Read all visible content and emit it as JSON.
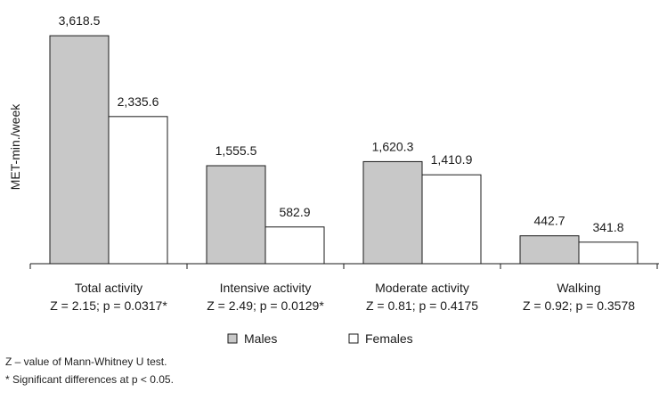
{
  "chart_data": {
    "type": "bar",
    "ylabel": "MET-min./week",
    "categories": [
      "Total activity",
      "Intensive activity",
      "Moderate activity",
      "Walking"
    ],
    "category_stats": [
      "Z = 2.15; p = 0.0317*",
      "Z = 2.49; p = 0.0129*",
      "Z = 0.81; p = 0.4175",
      "Z = 0.92; p = 0.3578"
    ],
    "series": [
      {
        "name": "Males",
        "values": [
          3618.5,
          1555.5,
          1620.3,
          442.7
        ],
        "labels": [
          "3,618.5",
          "1,555.5",
          "1,620.3",
          "442.7"
        ],
        "color": "#c8c8c8"
      },
      {
        "name": "Females",
        "values": [
          2335.6,
          582.9,
          1410.9,
          341.8
        ],
        "labels": [
          "2,335.6",
          "582.9",
          "1,410.9",
          "341.8"
        ],
        "color": "#ffffff"
      }
    ],
    "ylim": [
      0,
      3620
    ],
    "grid": false,
    "legend_position": "bottom-center"
  },
  "footnotes": [
    "Z – value of Mann-Whitney U test.",
    "* Significant differences at p < 0.05."
  ]
}
